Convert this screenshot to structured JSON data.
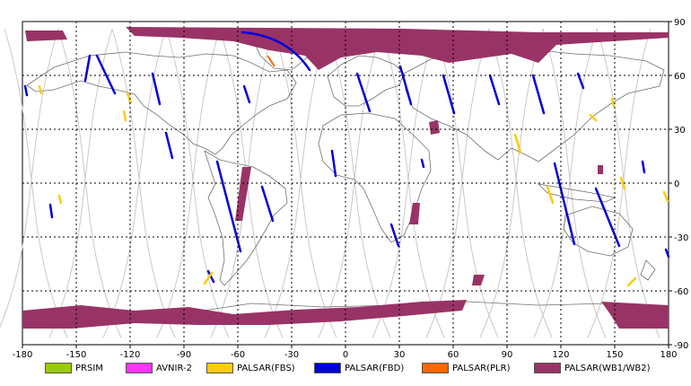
{
  "map": {
    "x_ticks": [
      "-180",
      "-150",
      "-120",
      "-90",
      "-60",
      "-30",
      "0",
      "30",
      "60",
      "90",
      "120",
      "150",
      "180"
    ],
    "y_ticks": [
      "90",
      "60",
      "30",
      "0",
      "-30",
      "-60",
      "-90"
    ],
    "colors": {
      "coast": "#6f6f6f",
      "orbit": "#c8c8c8",
      "grid": "#000000",
      "fbd": "#0000dd",
      "fbs": "#ffcc00",
      "plr": "#ff6600",
      "wb": "#993366"
    }
  },
  "legend": [
    {
      "label": "PRSIM",
      "color": "#99cc00"
    },
    {
      "label": "AVNIR-2",
      "color": "#ff33ff"
    },
    {
      "label": "PALSAR(FBS)",
      "color": "#ffcc00"
    },
    {
      "label": "PALSAR(FBD)",
      "color": "#0000dd"
    },
    {
      "label": "PALSAR(PLR)",
      "color": "#ff6600"
    },
    {
      "label": "PALSAR(WB1/WB2)",
      "color": "#993366"
    }
  ]
}
